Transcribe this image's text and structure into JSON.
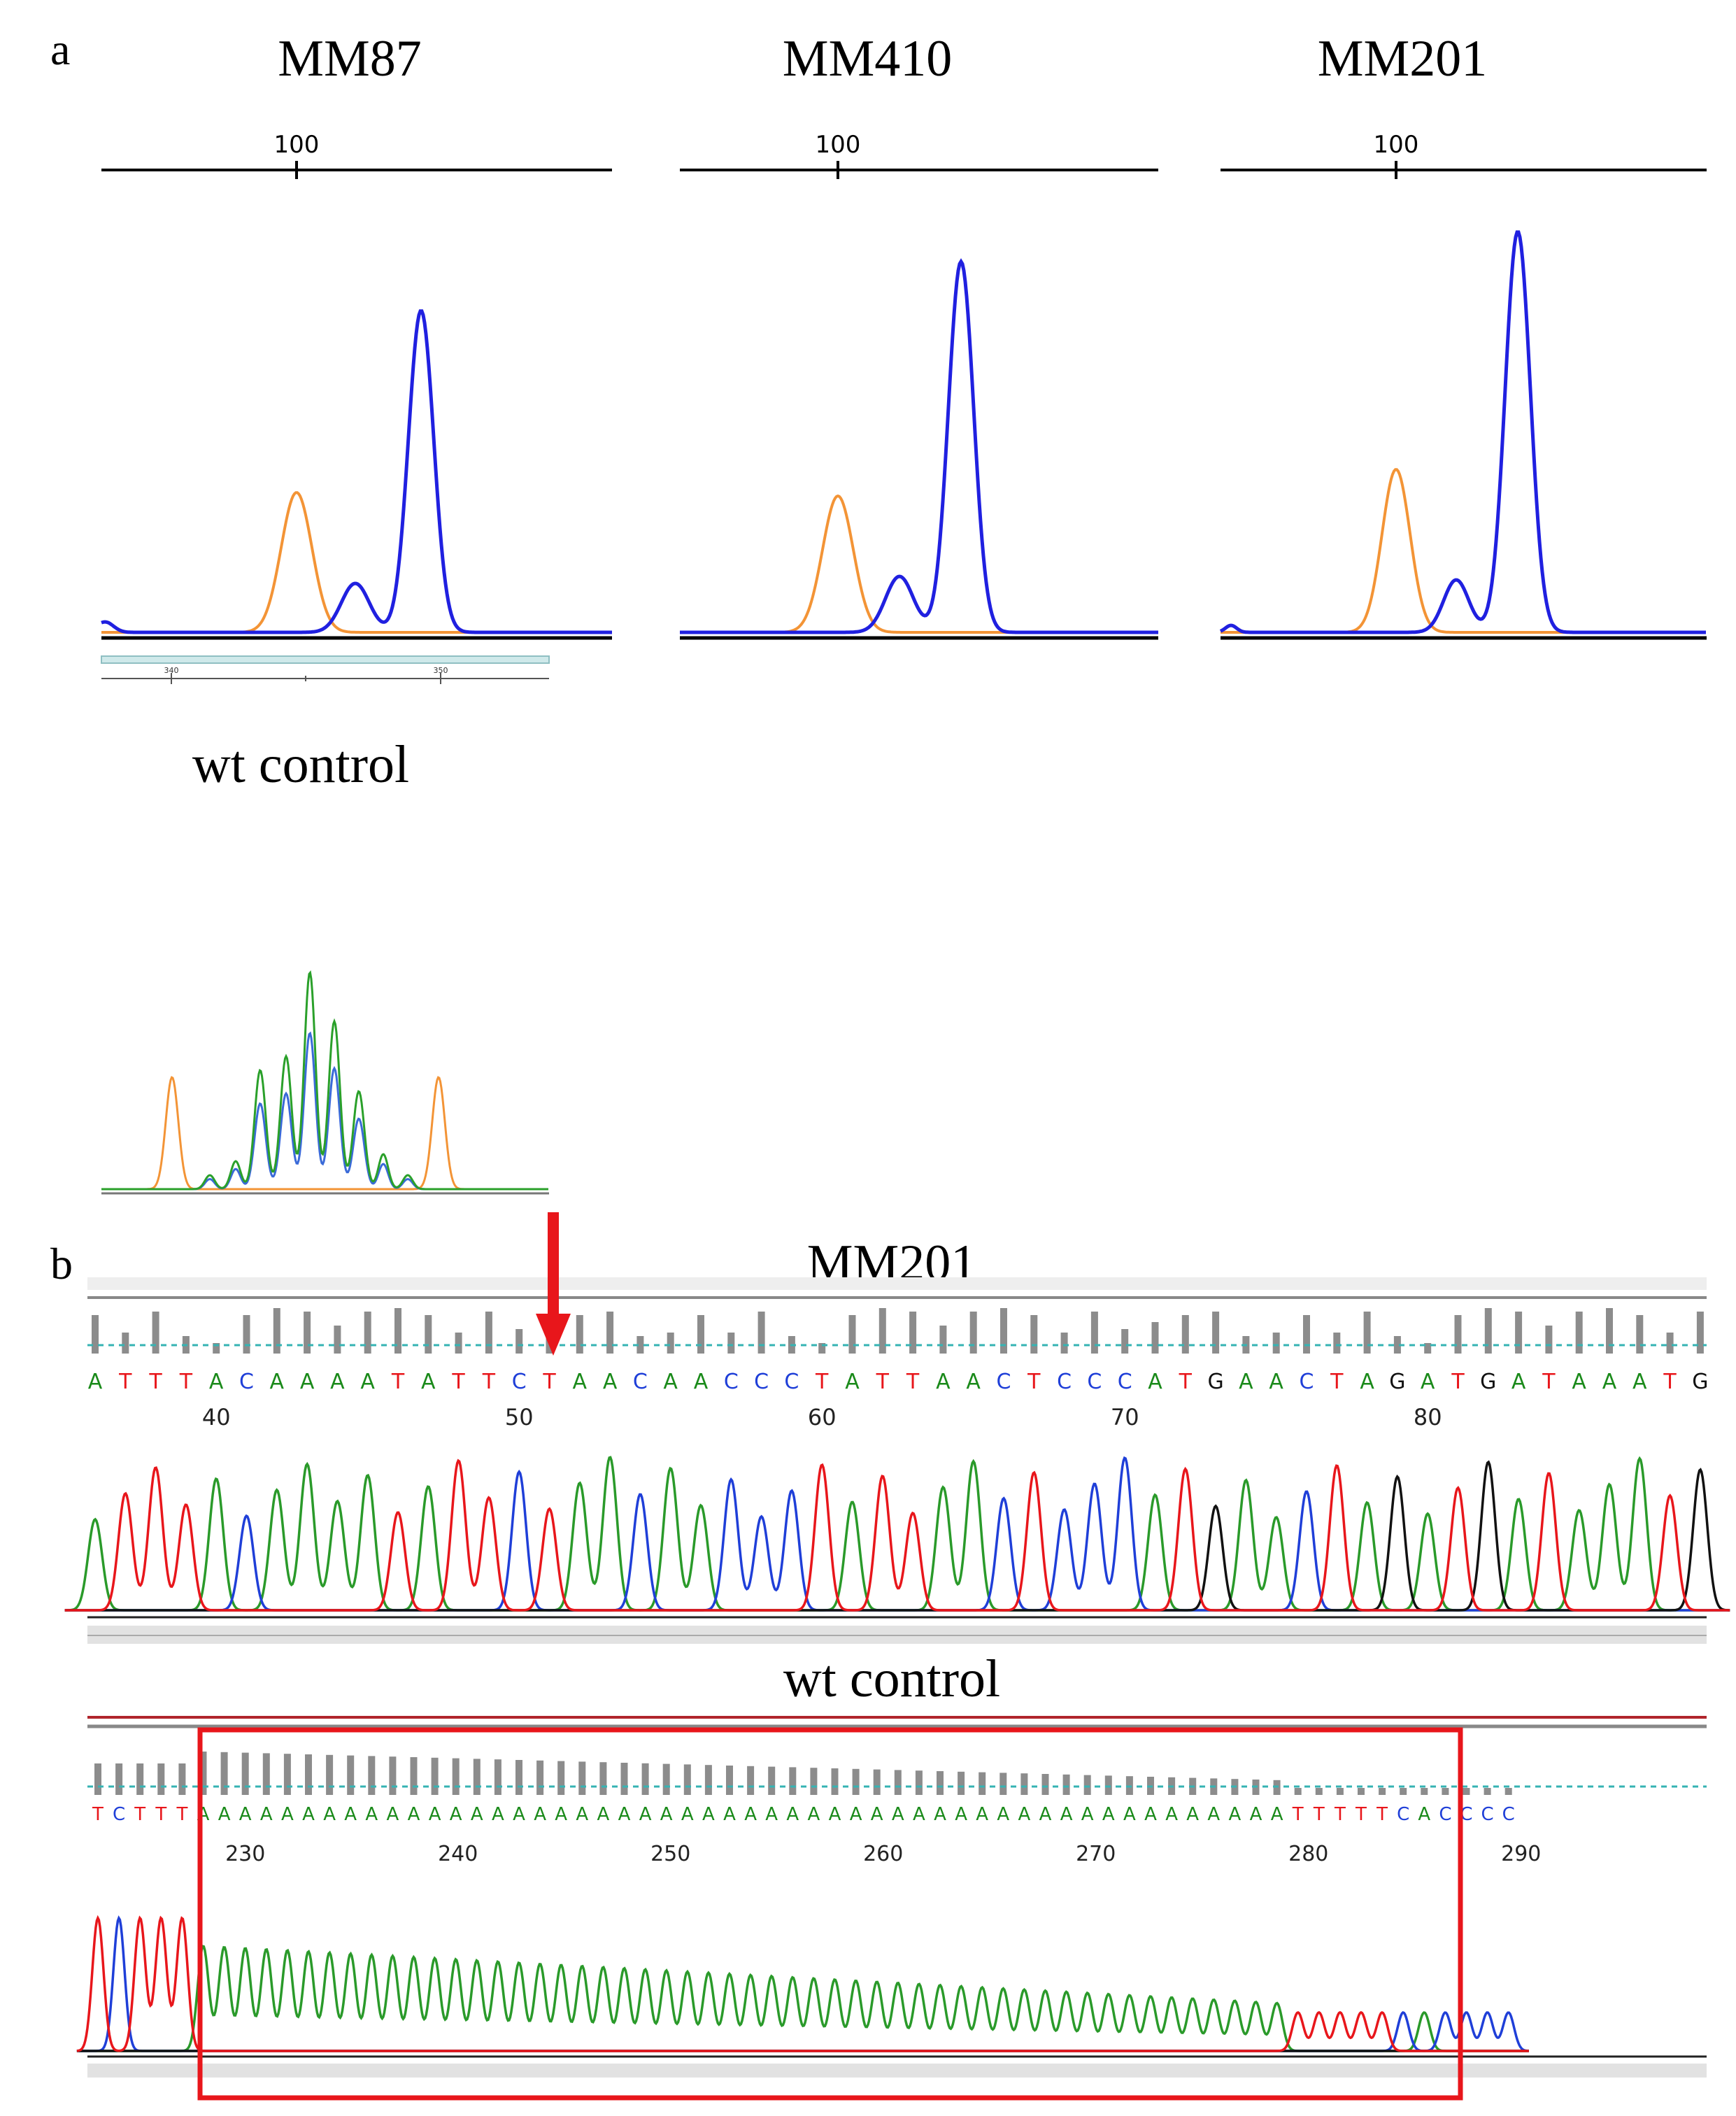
{
  "panel_a": {
    "label": "a",
    "samples": [
      {
        "name": "MM87",
        "scale_tick": "100"
      },
      {
        "name": "MM410",
        "scale_tick": "100"
      },
      {
        "name": "MM201",
        "scale_tick": "100"
      }
    ],
    "mini_ruler_ticks": [
      "340",
      "350"
    ],
    "wt_control_label": "wt control"
  },
  "panel_b": {
    "label": "b",
    "mm201": {
      "title": "MM201",
      "sequence": "ATTTACAAAATATTCTAACAACCCTATTAACTCCCATGAACTAGATGATAAATG",
      "positions": [
        "40",
        "50",
        "60",
        "70",
        "80"
      ]
    },
    "wt": {
      "title": "wt control",
      "sequence_prefix": "TCTTT",
      "poly_a": "AAAAAAAAAAAAAAAAAAAAAAAAAAAAAAAAAAAAAAAAAAAAAAAAAAAA",
      "sequence_suffix": "TTTTTCACCCC",
      "positions": [
        "230",
        "240",
        "250",
        "260",
        "270",
        "280",
        "290"
      ]
    }
  },
  "colors": {
    "A": "#1a8a1a",
    "C": "#1f3fd8",
    "G": "#111111",
    "T": "#e8161b",
    "fragment_blue": "#2020e0",
    "size_standard_orange": "#f39436",
    "highlight_red": "#e8161b"
  }
}
